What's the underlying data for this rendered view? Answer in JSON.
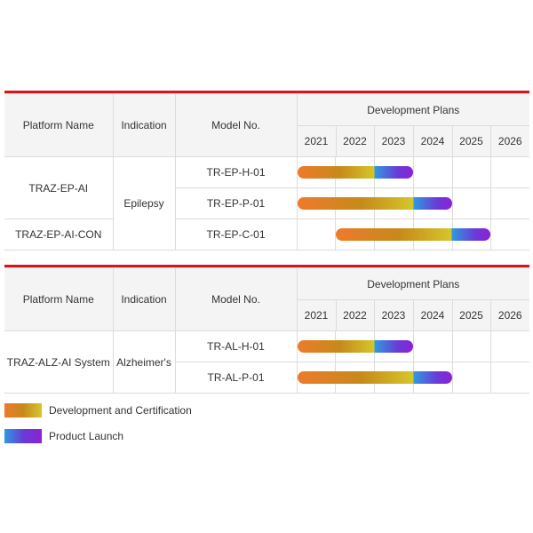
{
  "headers": {
    "platform": "Platform Name",
    "indication": "Indication",
    "model": "Model No.",
    "plans": "Development Plans",
    "years": [
      "2021",
      "2022",
      "2023",
      "2024",
      "2025",
      "2026"
    ]
  },
  "colors": {
    "accent_border": "#d9141c",
    "development": [
      "#ee7a2c",
      "#c68a1a",
      "#d6c62a"
    ],
    "launch": [
      "#2f9ae0",
      "#6a3bd8",
      "#8b22d6"
    ]
  },
  "tables": [
    {
      "rows": [
        {
          "platform": "TRAZ-EP-AI",
          "indication": "Epilepsy",
          "model": "TR-EP-H-01",
          "dev_start": 2021,
          "dev_end": 2023,
          "launch_end": 2024
        },
        {
          "platform": "",
          "indication": "",
          "model": "TR-EP-P-01",
          "dev_start": 2021,
          "dev_end": 2024,
          "launch_end": 2025
        },
        {
          "platform": "TRAZ-EP-AI-CON",
          "indication": "",
          "model": "TR-EP-C-01",
          "dev_start": 2022,
          "dev_end": 2025,
          "launch_end": 2026
        }
      ]
    },
    {
      "rows": [
        {
          "platform": "TRAZ-ALZ-AI System",
          "indication": "Alzheimer's",
          "model": "TR-AL-H-01",
          "dev_start": 2021,
          "dev_end": 2023,
          "launch_end": 2024
        },
        {
          "platform": "",
          "indication": "",
          "model": "TR-AL-P-01",
          "dev_start": 2021,
          "dev_end": 2024,
          "launch_end": 2025
        }
      ]
    }
  ],
  "legend": {
    "development": "Development and Certification",
    "launch": "Product Launch"
  }
}
